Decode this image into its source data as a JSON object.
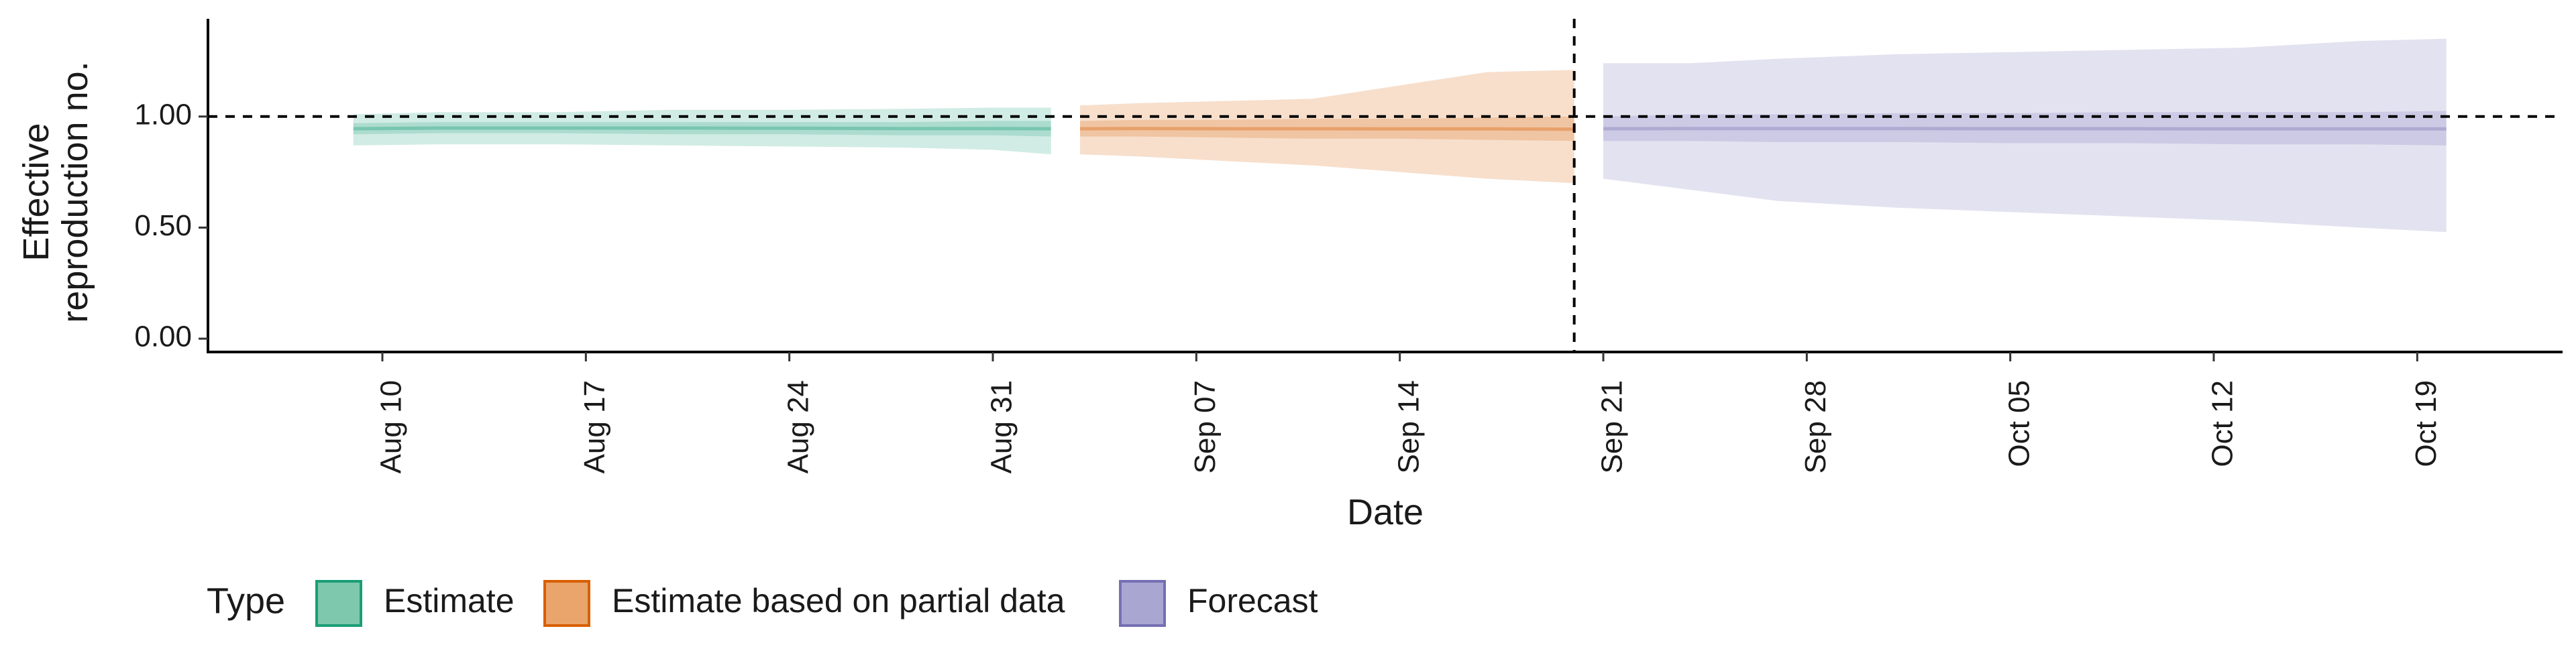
{
  "chart_data": {
    "type": "area",
    "title": "",
    "xlabel": "Date",
    "ylabel": "Effective reproduction no.",
    "ylabel_lines": [
      "Effective",
      "reproduction no."
    ],
    "x_range": [
      "2022-08-04",
      "2022-10-24"
    ],
    "ylim": [
      -0.06,
      1.44
    ],
    "y_ticks": [
      {
        "value": 0,
        "label": "0.00"
      },
      {
        "value": 0.5,
        "label": "0.50"
      },
      {
        "value": 1,
        "label": "1.00"
      }
    ],
    "x_ticks": [
      {
        "date": "2022-08-10",
        "label": "Aug 10"
      },
      {
        "date": "2022-08-17",
        "label": "Aug 17"
      },
      {
        "date": "2022-08-24",
        "label": "Aug 24"
      },
      {
        "date": "2022-08-31",
        "label": "Aug 31"
      },
      {
        "date": "2022-09-07",
        "label": "Sep 07"
      },
      {
        "date": "2022-09-14",
        "label": "Sep 14"
      },
      {
        "date": "2022-09-21",
        "label": "Sep 21"
      },
      {
        "date": "2022-09-28",
        "label": "Sep 28"
      },
      {
        "date": "2022-10-05",
        "label": "Oct 05"
      },
      {
        "date": "2022-10-12",
        "label": "Oct 12"
      },
      {
        "date": "2022-10-19",
        "label": "Oct 19"
      }
    ],
    "reference_lines": {
      "horizontal_y": 1.0,
      "vertical_date": "2022-09-20"
    },
    "grid": false,
    "legend": {
      "title": "Type",
      "position": "bottom-left",
      "items": [
        {
          "label": "Estimate",
          "fill": "#7ec8ad",
          "stroke": "#1b9e77"
        },
        {
          "label": "Estimate based on partial data",
          "fill": "#e9a56c",
          "stroke": "#d95f02"
        },
        {
          "label": "Forecast",
          "fill": "#a9a6d2",
          "stroke": "#7570b3"
        }
      ]
    },
    "series": [
      {
        "name": "Estimate",
        "color": "#1b9e77",
        "start_date": "2022-08-09",
        "points": [
          {
            "date": "2022-08-09",
            "lower90": 0.87,
            "upper90": 1.01,
            "lower50": 0.92,
            "upper50": 0.97,
            "median": 0.945
          },
          {
            "date": "2022-08-12",
            "lower90": 0.875,
            "upper90": 1.02,
            "lower50": 0.925,
            "upper50": 0.975,
            "median": 0.948
          },
          {
            "date": "2022-08-16",
            "lower90": 0.875,
            "upper90": 1.02,
            "lower50": 0.925,
            "upper50": 0.975,
            "median": 0.948
          },
          {
            "date": "2022-08-20",
            "lower90": 0.87,
            "upper90": 1.03,
            "lower50": 0.92,
            "upper50": 0.975,
            "median": 0.948
          },
          {
            "date": "2022-08-24",
            "lower90": 0.865,
            "upper90": 1.03,
            "lower50": 0.92,
            "upper50": 0.975,
            "median": 0.947
          },
          {
            "date": "2022-08-28",
            "lower90": 0.86,
            "upper90": 1.035,
            "lower50": 0.915,
            "upper50": 0.975,
            "median": 0.946
          },
          {
            "date": "2022-08-31",
            "lower90": 0.85,
            "upper90": 1.04,
            "lower50": 0.915,
            "upper50": 0.98,
            "median": 0.946
          },
          {
            "date": "2022-09-02",
            "lower90": 0.83,
            "upper90": 1.04,
            "lower50": 0.91,
            "upper50": 0.98,
            "median": 0.945
          }
        ]
      },
      {
        "name": "Estimate based on partial data",
        "color": "#d95f02",
        "start_date": "2022-09-03",
        "points": [
          {
            "date": "2022-09-03",
            "lower90": 0.83,
            "upper90": 1.05,
            "lower50": 0.91,
            "upper50": 0.98,
            "median": 0.945
          },
          {
            "date": "2022-09-05",
            "lower90": 0.82,
            "upper90": 1.06,
            "lower50": 0.91,
            "upper50": 0.985,
            "median": 0.946
          },
          {
            "date": "2022-09-08",
            "lower90": 0.8,
            "upper90": 1.07,
            "lower50": 0.905,
            "upper50": 0.985,
            "median": 0.945
          },
          {
            "date": "2022-09-11",
            "lower90": 0.78,
            "upper90": 1.08,
            "lower50": 0.9,
            "upper50": 0.99,
            "median": 0.945
          },
          {
            "date": "2022-09-14",
            "lower90": 0.75,
            "upper90": 1.14,
            "lower50": 0.9,
            "upper50": 0.99,
            "median": 0.944
          },
          {
            "date": "2022-09-17",
            "lower90": 0.72,
            "upper90": 1.2,
            "lower50": 0.895,
            "upper50": 0.995,
            "median": 0.944
          },
          {
            "date": "2022-09-20",
            "lower90": 0.7,
            "upper90": 1.21,
            "lower50": 0.89,
            "upper50": 1.0,
            "median": 0.943
          }
        ]
      },
      {
        "name": "Forecast",
        "color": "#7570b3",
        "start_date": "2022-09-21",
        "points": [
          {
            "date": "2022-09-21",
            "lower90": 0.72,
            "upper90": 1.24,
            "lower50": 0.89,
            "upper50": 1.0,
            "median": 0.945
          },
          {
            "date": "2022-09-24",
            "lower90": 0.67,
            "upper90": 1.24,
            "lower50": 0.89,
            "upper50": 1.01,
            "median": 0.946
          },
          {
            "date": "2022-09-27",
            "lower90": 0.62,
            "upper90": 1.26,
            "lower50": 0.885,
            "upper50": 1.01,
            "median": 0.946
          },
          {
            "date": "2022-10-01",
            "lower90": 0.59,
            "upper90": 1.28,
            "lower50": 0.885,
            "upper50": 1.015,
            "median": 0.946
          },
          {
            "date": "2022-10-05",
            "lower90": 0.57,
            "upper90": 1.29,
            "lower50": 0.88,
            "upper50": 1.015,
            "median": 0.945
          },
          {
            "date": "2022-10-09",
            "lower90": 0.55,
            "upper90": 1.3,
            "lower50": 0.88,
            "upper50": 1.02,
            "median": 0.945
          },
          {
            "date": "2022-10-13",
            "lower90": 0.53,
            "upper90": 1.31,
            "lower50": 0.875,
            "upper50": 1.02,
            "median": 0.944
          },
          {
            "date": "2022-10-17",
            "lower90": 0.5,
            "upper90": 1.34,
            "lower50": 0.875,
            "upper50": 1.02,
            "median": 0.944
          },
          {
            "date": "2022-10-20",
            "lower90": 0.48,
            "upper90": 1.35,
            "lower50": 0.87,
            "upper50": 1.025,
            "median": 0.944
          }
        ]
      }
    ]
  }
}
